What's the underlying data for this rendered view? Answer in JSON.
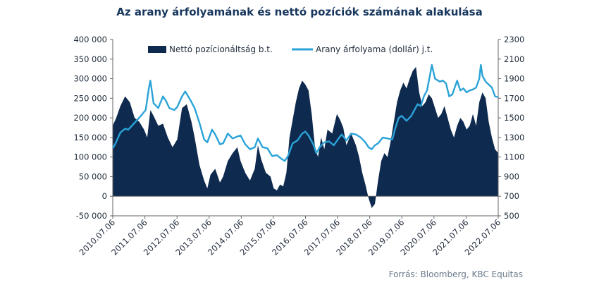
{
  "colors": {
    "bars": "#0e2a4f",
    "line": "#2aa3d8",
    "axis": "#666666"
  },
  "chart_data": {
    "type": "bar+line",
    "title": "Az arany árfolyamának és nettó pozíciók számának alakulása",
    "source": "Forrás: Bloomberg, KBC Equitas",
    "legend_position": "top",
    "grid": false,
    "x_ticks": [
      "2010.07.06",
      "2011.07.06",
      "2012.07.06",
      "2013.07.06",
      "2014.07.06",
      "2015.07.06",
      "2016.07.06",
      "2017.07.06",
      "2018.07.06",
      "2019.07.06",
      "2020.07.06",
      "2021.07.06",
      "2022.07.06"
    ],
    "y_left": {
      "ylim": [
        -50000,
        400000
      ],
      "ticks": [
        "-50 000",
        "0",
        "50 000",
        "100 000",
        "150 000",
        "200 000",
        "250 000",
        "300 000",
        "350 000",
        "400 000"
      ]
    },
    "y_right": {
      "ylim": [
        500,
        2300
      ],
      "ticks": [
        "500",
        "700",
        "900",
        "1100",
        "1300",
        "1500",
        "1700",
        "1900",
        "2100",
        "2300"
      ]
    },
    "series": [
      {
        "name": "Nettó pozícionáltság b.t.",
        "type": "area",
        "axis": "left",
        "points": [
          [
            2010.51,
            180000
          ],
          [
            2010.62,
            200000
          ],
          [
            2010.75,
            230000
          ],
          [
            2010.9,
            255000
          ],
          [
            2011.05,
            240000
          ],
          [
            2011.2,
            200000
          ],
          [
            2011.35,
            190000
          ],
          [
            2011.5,
            170000
          ],
          [
            2011.6,
            150000
          ],
          [
            2011.7,
            220000
          ],
          [
            2011.8,
            205000
          ],
          [
            2011.95,
            180000
          ],
          [
            2012.1,
            185000
          ],
          [
            2012.25,
            150000
          ],
          [
            2012.4,
            125000
          ],
          [
            2012.55,
            145000
          ],
          [
            2012.7,
            225000
          ],
          [
            2012.85,
            235000
          ],
          [
            2013.0,
            190000
          ],
          [
            2013.1,
            150000
          ],
          [
            2013.25,
            80000
          ],
          [
            2013.4,
            40000
          ],
          [
            2013.5,
            20000
          ],
          [
            2013.6,
            55000
          ],
          [
            2013.75,
            70000
          ],
          [
            2013.9,
            35000
          ],
          [
            2014.0,
            50000
          ],
          [
            2014.15,
            90000
          ],
          [
            2014.3,
            110000
          ],
          [
            2014.45,
            125000
          ],
          [
            2014.55,
            90000
          ],
          [
            2014.7,
            60000
          ],
          [
            2014.85,
            40000
          ],
          [
            2015.0,
            70000
          ],
          [
            2015.1,
            130000
          ],
          [
            2015.2,
            95000
          ],
          [
            2015.35,
            60000
          ],
          [
            2015.5,
            50000
          ],
          [
            2015.6,
            20000
          ],
          [
            2015.7,
            15000
          ],
          [
            2015.8,
            30000
          ],
          [
            2015.9,
            25000
          ],
          [
            2016.0,
            60000
          ],
          [
            2016.1,
            150000
          ],
          [
            2016.2,
            195000
          ],
          [
            2016.3,
            240000
          ],
          [
            2016.4,
            275000
          ],
          [
            2016.5,
            295000
          ],
          [
            2016.6,
            285000
          ],
          [
            2016.7,
            270000
          ],
          [
            2016.8,
            210000
          ],
          [
            2016.9,
            130000
          ],
          [
            2017.0,
            100000
          ],
          [
            2017.1,
            150000
          ],
          [
            2017.2,
            120000
          ],
          [
            2017.3,
            170000
          ],
          [
            2017.45,
            160000
          ],
          [
            2017.6,
            210000
          ],
          [
            2017.7,
            195000
          ],
          [
            2017.8,
            175000
          ],
          [
            2017.9,
            130000
          ],
          [
            2018.05,
            160000
          ],
          [
            2018.2,
            130000
          ],
          [
            2018.3,
            100000
          ],
          [
            2018.4,
            60000
          ],
          [
            2018.5,
            30000
          ],
          [
            2018.6,
            -5000
          ],
          [
            2018.7,
            -30000
          ],
          [
            2018.8,
            -20000
          ],
          [
            2018.9,
            40000
          ],
          [
            2019.0,
            90000
          ],
          [
            2019.1,
            110000
          ],
          [
            2019.2,
            100000
          ],
          [
            2019.3,
            140000
          ],
          [
            2019.4,
            190000
          ],
          [
            2019.5,
            240000
          ],
          [
            2019.6,
            270000
          ],
          [
            2019.7,
            290000
          ],
          [
            2019.8,
            275000
          ],
          [
            2019.9,
            300000
          ],
          [
            2020.0,
            320000
          ],
          [
            2020.1,
            330000
          ],
          [
            2020.2,
            265000
          ],
          [
            2020.3,
            230000
          ],
          [
            2020.4,
            240000
          ],
          [
            2020.5,
            260000
          ],
          [
            2020.6,
            250000
          ],
          [
            2020.7,
            225000
          ],
          [
            2020.8,
            200000
          ],
          [
            2020.9,
            210000
          ],
          [
            2021.0,
            230000
          ],
          [
            2021.1,
            200000
          ],
          [
            2021.2,
            170000
          ],
          [
            2021.3,
            150000
          ],
          [
            2021.4,
            180000
          ],
          [
            2021.5,
            200000
          ],
          [
            2021.6,
            190000
          ],
          [
            2021.7,
            170000
          ],
          [
            2021.8,
            180000
          ],
          [
            2021.9,
            210000
          ],
          [
            2022.0,
            180000
          ],
          [
            2022.1,
            240000
          ],
          [
            2022.2,
            265000
          ],
          [
            2022.3,
            250000
          ],
          [
            2022.4,
            190000
          ],
          [
            2022.5,
            150000
          ],
          [
            2022.6,
            120000
          ],
          [
            2022.7,
            110000
          ]
        ]
      },
      {
        "name": "Arany árfolyama (dollár) j.t.",
        "type": "line",
        "axis": "right",
        "points": [
          [
            2010.51,
            1190
          ],
          [
            2010.6,
            1240
          ],
          [
            2010.75,
            1350
          ],
          [
            2010.9,
            1390
          ],
          [
            2011.0,
            1380
          ],
          [
            2011.2,
            1450
          ],
          [
            2011.4,
            1520
          ],
          [
            2011.55,
            1580
          ],
          [
            2011.65,
            1800
          ],
          [
            2011.7,
            1880
          ],
          [
            2011.8,
            1650
          ],
          [
            2011.95,
            1600
          ],
          [
            2012.1,
            1720
          ],
          [
            2012.2,
            1670
          ],
          [
            2012.3,
            1600
          ],
          [
            2012.45,
            1580
          ],
          [
            2012.55,
            1610
          ],
          [
            2012.7,
            1720
          ],
          [
            2012.8,
            1770
          ],
          [
            2012.95,
            1690
          ],
          [
            2013.1,
            1600
          ],
          [
            2013.25,
            1450
          ],
          [
            2013.4,
            1280
          ],
          [
            2013.5,
            1250
          ],
          [
            2013.65,
            1380
          ],
          [
            2013.75,
            1330
          ],
          [
            2013.9,
            1230
          ],
          [
            2014.0,
            1240
          ],
          [
            2014.15,
            1340
          ],
          [
            2014.3,
            1290
          ],
          [
            2014.45,
            1310
          ],
          [
            2014.55,
            1320
          ],
          [
            2014.7,
            1230
          ],
          [
            2014.85,
            1180
          ],
          [
            2015.0,
            1200
          ],
          [
            2015.1,
            1290
          ],
          [
            2015.25,
            1200
          ],
          [
            2015.4,
            1190
          ],
          [
            2015.55,
            1110
          ],
          [
            2015.7,
            1120
          ],
          [
            2015.85,
            1080
          ],
          [
            2015.95,
            1060
          ],
          [
            2016.05,
            1110
          ],
          [
            2016.2,
            1240
          ],
          [
            2016.35,
            1270
          ],
          [
            2016.5,
            1340
          ],
          [
            2016.6,
            1360
          ],
          [
            2016.7,
            1320
          ],
          [
            2016.85,
            1230
          ],
          [
            2016.95,
            1140
          ],
          [
            2017.05,
            1200
          ],
          [
            2017.2,
            1250
          ],
          [
            2017.35,
            1260
          ],
          [
            2017.5,
            1220
          ],
          [
            2017.65,
            1290
          ],
          [
            2017.75,
            1330
          ],
          [
            2017.9,
            1270
          ],
          [
            2018.05,
            1340
          ],
          [
            2018.2,
            1330
          ],
          [
            2018.35,
            1300
          ],
          [
            2018.5,
            1250
          ],
          [
            2018.6,
            1200
          ],
          [
            2018.7,
            1180
          ],
          [
            2018.8,
            1220
          ],
          [
            2018.9,
            1240
          ],
          [
            2019.05,
            1300
          ],
          [
            2019.2,
            1290
          ],
          [
            2019.35,
            1280
          ],
          [
            2019.45,
            1400
          ],
          [
            2019.55,
            1500
          ],
          [
            2019.65,
            1520
          ],
          [
            2019.8,
            1470
          ],
          [
            2019.95,
            1520
          ],
          [
            2020.05,
            1580
          ],
          [
            2020.15,
            1640
          ],
          [
            2020.25,
            1620
          ],
          [
            2020.35,
            1720
          ],
          [
            2020.45,
            1780
          ],
          [
            2020.55,
            1950
          ],
          [
            2020.6,
            2040
          ],
          [
            2020.7,
            1900
          ],
          [
            2020.85,
            1870
          ],
          [
            2020.95,
            1880
          ],
          [
            2021.05,
            1850
          ],
          [
            2021.15,
            1720
          ],
          [
            2021.25,
            1740
          ],
          [
            2021.4,
            1880
          ],
          [
            2021.5,
            1780
          ],
          [
            2021.6,
            1800
          ],
          [
            2021.7,
            1760
          ],
          [
            2021.8,
            1780
          ],
          [
            2021.9,
            1790
          ],
          [
            2022.0,
            1810
          ],
          [
            2022.1,
            1900
          ],
          [
            2022.15,
            2040
          ],
          [
            2022.2,
            1930
          ],
          [
            2022.3,
            1870
          ],
          [
            2022.4,
            1840
          ],
          [
            2022.5,
            1810
          ],
          [
            2022.6,
            1720
          ],
          [
            2022.7,
            1710
          ]
        ]
      }
    ]
  }
}
